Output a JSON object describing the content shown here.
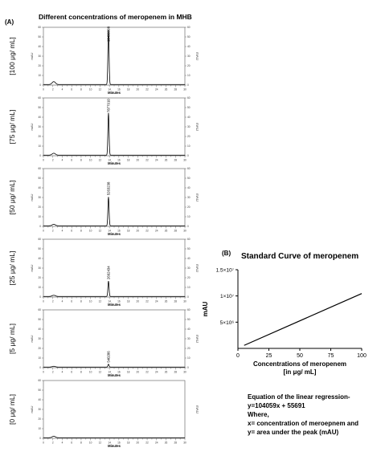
{
  "panel_a": {
    "label": "(A)",
    "title": "Different concentrations of meropenem in MHB"
  },
  "panel_b": {
    "label": "(B)",
    "title": "Standard Curve of meropenem"
  },
  "equation": {
    "line1": "Equation of the linear regression-",
    "line2": "y=104059x + 55691",
    "line3": "Where,",
    "line4": "x= concentration of meroepnem and",
    "line5": "y= area under the peak (mAU)"
  },
  "colors": {
    "trace": "#000000",
    "frame": "#555555"
  },
  "chart_data": [
    {
      "type": "line",
      "title": "",
      "side_label": "[100 μg/ mL]",
      "ylabel_left": "mAU",
      "ylabel_right": "mAU",
      "xlabel": "Minutes",
      "xlim": [
        0,
        30
      ],
      "ylim": [
        0,
        60
      ],
      "peaks": [
        {
          "x": 2.2,
          "height": 3
        },
        {
          "x": 13.8,
          "height": 57
        }
      ],
      "annotations": [
        {
          "x": 13.8,
          "text": "10430898"
        }
      ],
      "has_right_ticks": true
    },
    {
      "type": "line",
      "title": "",
      "side_label": "[75 μg/ mL]",
      "ylabel_left": "mAU",
      "ylabel_right": "mAU",
      "xlabel": "Minutes",
      "xlim": [
        0,
        30
      ],
      "ylim": [
        0,
        60
      ],
      "peaks": [
        {
          "x": 2.2,
          "height": 2
        },
        {
          "x": 13.8,
          "height": 44
        }
      ],
      "annotations": [
        {
          "x": 13.8,
          "text": "7877910"
        }
      ],
      "has_right_ticks": true
    },
    {
      "type": "line",
      "title": "",
      "side_label": "[50 μg/ mL]",
      "ylabel_left": "mAU",
      "ylabel_right": "mAU",
      "xlabel": "Minutes",
      "xlim": [
        0,
        30
      ],
      "ylim": [
        0,
        60
      ],
      "peaks": [
        {
          "x": 2.2,
          "height": 1.5
        },
        {
          "x": 13.8,
          "height": 30
        }
      ],
      "annotations": [
        {
          "x": 13.8,
          "text": "5263238"
        }
      ],
      "has_right_ticks": true
    },
    {
      "type": "line",
      "title": "",
      "side_label": "[25 μg/ mL]",
      "ylabel_left": "mAU",
      "ylabel_right": "mAU",
      "xlabel": "Minutes",
      "xlim": [
        0,
        30
      ],
      "ylim": [
        0,
        60
      ],
      "peaks": [
        {
          "x": 2.2,
          "height": 1.2
        },
        {
          "x": 13.8,
          "height": 16
        }
      ],
      "annotations": [
        {
          "x": 13.8,
          "text": "2662434"
        }
      ],
      "has_right_ticks": true
    },
    {
      "type": "line",
      "title": "",
      "side_label": "[5 μg/ mL]",
      "ylabel_left": "mAU",
      "ylabel_right": "mAU",
      "xlabel": "Minutes",
      "xlim": [
        0,
        30
      ],
      "ylim": [
        0,
        60
      ],
      "peaks": [
        {
          "x": 2.2,
          "height": 0.8
        },
        {
          "x": 13.8,
          "height": 3
        }
      ],
      "annotations": [
        {
          "x": 13.8,
          "text": "540286"
        }
      ],
      "has_right_ticks": true
    },
    {
      "type": "line",
      "title": "",
      "side_label": "[0 μg/ mL]",
      "ylabel_left": "mAU",
      "ylabel_right": "mAU",
      "xlabel": "Minutes",
      "xlim": [
        0,
        30
      ],
      "ylim": [
        0,
        60
      ],
      "peaks": [
        {
          "x": 2.2,
          "height": 1.5
        }
      ],
      "annotations": [],
      "has_right_ticks": false
    },
    {
      "type": "line",
      "title": "Standard Curve of meropenem",
      "xlabel_line1": "Concentrations of meropenem",
      "xlabel_line2": "[in μg/ mL]",
      "ylabel": "mAU",
      "xlim": [
        0,
        100
      ],
      "ylim": [
        0,
        15000000
      ],
      "xticks": [
        0,
        25,
        50,
        75,
        100
      ],
      "xtick_labels": [
        "0",
        "25",
        "50",
        "75",
        "100"
      ],
      "yticks": [
        5000000,
        10000000,
        15000000
      ],
      "ytick_labels": [
        "5×10⁶",
        "1×10⁷",
        "1.5×10⁷"
      ],
      "series": [
        {
          "x": [
            5,
            100
          ],
          "y": [
            575986,
            10461591
          ]
        }
      ],
      "grid": false
    }
  ]
}
